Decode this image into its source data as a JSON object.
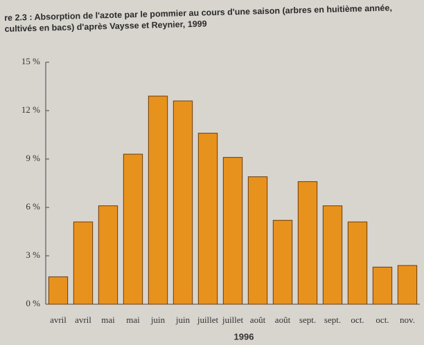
{
  "chart_data": {
    "type": "bar",
    "title": "re 2.3 : Absorption de l'azote par le pommier au cours d'une saison (arbres en huitième année, cultivés en bacs) d'après Vaysse et Reynier, 1999",
    "x_label": "1996",
    "categories": [
      "avril",
      "avril",
      "mai",
      "mai",
      "juin",
      "juin",
      "juillet",
      "juillet",
      "août",
      "août",
      "sept.",
      "sept.",
      "oct.",
      "oct.",
      "nov."
    ],
    "values": [
      1.7,
      5.1,
      6.1,
      9.3,
      12.9,
      12.6,
      10.6,
      9.1,
      7.9,
      5.2,
      7.6,
      6.1,
      5.1,
      2.3,
      2.4
    ],
    "color": "#e8921e",
    "ylim": [
      0,
      15
    ],
    "yticks": [
      {
        "value": 0,
        "label": "0 %"
      },
      {
        "value": 3,
        "label": "3 %"
      },
      {
        "value": 6,
        "label": "6 %"
      },
      {
        "value": 9,
        "label": "9 %"
      },
      {
        "value": 12,
        "label": "12 %"
      },
      {
        "value": 15,
        "label": "15 %"
      }
    ],
    "grid": false
  }
}
